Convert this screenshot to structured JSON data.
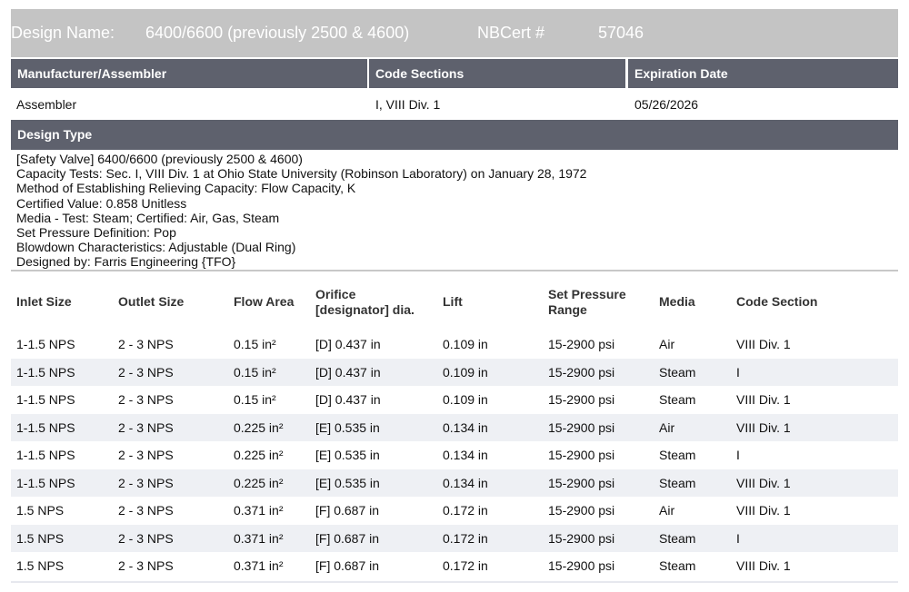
{
  "header": {
    "design_name_label": "Design Name:",
    "design_name": "6400/6600 (previously 2500 & 4600)",
    "nbcert_label": "NBCert #",
    "nbcert": "57046"
  },
  "summary": {
    "columns": [
      "Manufacturer/Assembler",
      "Code Sections",
      "Expiration Date"
    ],
    "values": [
      "Assembler",
      "I, VIII Div. 1",
      "05/26/2026"
    ]
  },
  "design_type": {
    "title": "Design Type",
    "lines": [
      "[Safety Valve]  6400/6600 (previously 2500 & 4600)",
      "Capacity Tests: Sec. I, VIII Div. 1 at Ohio State University (Robinson Laboratory) on January 28, 1972",
      "Method of Establishing Relieving Capacity: Flow Capacity, K",
      "Certified Value: 0.858 Unitless",
      "Media -  Test: Steam; Certified: Air, Gas, Steam",
      "Set Pressure Definition: Pop",
      "Blowdown Characteristics: Adjustable (Dual Ring)",
      "Designed by: Farris Engineering {TFO}"
    ]
  },
  "table": {
    "columns": [
      "Inlet Size",
      "Outlet Size",
      "Flow Area",
      "Orifice [designator] dia.",
      "Lift",
      "Set Pressure Range",
      "Media",
      "Code Section"
    ],
    "rows": [
      [
        "1-1.5 NPS",
        "2 - 3 NPS",
        "0.15 in²",
        "[D] 0.437 in",
        "0.109 in",
        "15-2900 psi",
        "Air",
        "VIII Div. 1"
      ],
      [
        "1-1.5 NPS",
        "2 - 3 NPS",
        "0.15 in²",
        "[D] 0.437 in",
        "0.109 in",
        "15-2900 psi",
        "Steam",
        "I"
      ],
      [
        "1-1.5 NPS",
        "2 - 3 NPS",
        "0.15 in²",
        "[D] 0.437 in",
        "0.109 in",
        "15-2900 psi",
        "Steam",
        "VIII Div. 1"
      ],
      [
        "1-1.5 NPS",
        "2 - 3 NPS",
        "0.225 in²",
        "[E] 0.535 in",
        "0.134 in",
        "15-2900 psi",
        "Air",
        "VIII Div. 1"
      ],
      [
        "1-1.5 NPS",
        "2 - 3 NPS",
        "0.225 in²",
        "[E] 0.535 in",
        "0.134 in",
        "15-2900 psi",
        "Steam",
        "I"
      ],
      [
        "1-1.5 NPS",
        "2 - 3 NPS",
        "0.225 in²",
        "[E] 0.535 in",
        "0.134 in",
        "15-2900 psi",
        "Steam",
        "VIII Div. 1"
      ],
      [
        "1.5 NPS",
        "2 - 3 NPS",
        "0.371 in²",
        "[F] 0.687 in",
        "0.172 in",
        "15-2900 psi",
        "Air",
        "VIII Div. 1"
      ],
      [
        "1.5 NPS",
        "2 - 3 NPS",
        "0.371 in²",
        "[F] 0.687 in",
        "0.172 in",
        "15-2900 psi",
        "Steam",
        "I"
      ],
      [
        "1.5 NPS",
        "2 - 3 NPS",
        "0.371 in²",
        "[F] 0.687 in",
        "0.172 in",
        "15-2900 psi",
        "Steam",
        "VIII Div. 1"
      ]
    ]
  }
}
